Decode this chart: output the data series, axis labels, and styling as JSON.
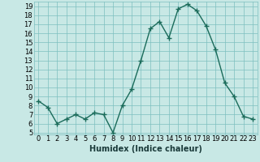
{
  "x": [
    0,
    1,
    2,
    3,
    4,
    5,
    6,
    7,
    8,
    9,
    10,
    11,
    12,
    13,
    14,
    15,
    16,
    17,
    18,
    19,
    20,
    21,
    22,
    23
  ],
  "y": [
    8.5,
    7.8,
    6.0,
    6.5,
    7.0,
    6.5,
    7.2,
    7.0,
    5.0,
    8.0,
    9.8,
    13.0,
    16.5,
    17.3,
    15.5,
    18.7,
    19.2,
    18.5,
    16.8,
    14.2,
    10.5,
    9.0,
    6.8,
    6.5
  ],
  "line_color": "#1a6b5a",
  "marker": "+",
  "marker_size": 4,
  "marker_lw": 1.0,
  "bg_color": "#c8e8e5",
  "grid_color": "#7dbfbf",
  "xlabel": "Humidex (Indice chaleur)",
  "ylim": [
    4.8,
    19.5
  ],
  "xlim": [
    -0.5,
    23.5
  ],
  "yticks": [
    5,
    6,
    7,
    8,
    9,
    10,
    11,
    12,
    13,
    14,
    15,
    16,
    17,
    18,
    19
  ],
  "xticks": [
    0,
    1,
    2,
    3,
    4,
    5,
    6,
    7,
    8,
    9,
    10,
    11,
    12,
    13,
    14,
    15,
    16,
    17,
    18,
    19,
    20,
    21,
    22,
    23
  ],
  "xlabel_fontsize": 7,
  "tick_fontsize": 6,
  "line_width": 1.0
}
